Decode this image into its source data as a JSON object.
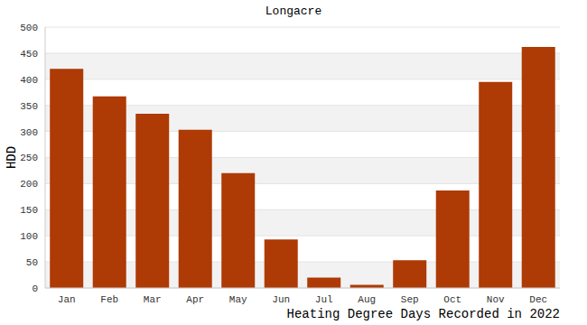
{
  "chart_data": {
    "type": "bar",
    "title": "Longacre",
    "subtitle": "Heating Degree Days Recorded in 2022",
    "ylabel": "HDD",
    "categories": [
      "Jan",
      "Feb",
      "Mar",
      "Apr",
      "May",
      "Jun",
      "Jul",
      "Aug",
      "Sep",
      "Oct",
      "Nov",
      "Dec"
    ],
    "values": [
      420,
      367,
      334,
      303,
      220,
      93,
      20,
      6,
      53,
      187,
      395,
      462
    ],
    "color": "#ae3a05",
    "ylim": [
      0,
      500
    ],
    "yticks": [
      0,
      50,
      100,
      150,
      200,
      250,
      300,
      350,
      400,
      450,
      500
    ],
    "grid": true
  }
}
